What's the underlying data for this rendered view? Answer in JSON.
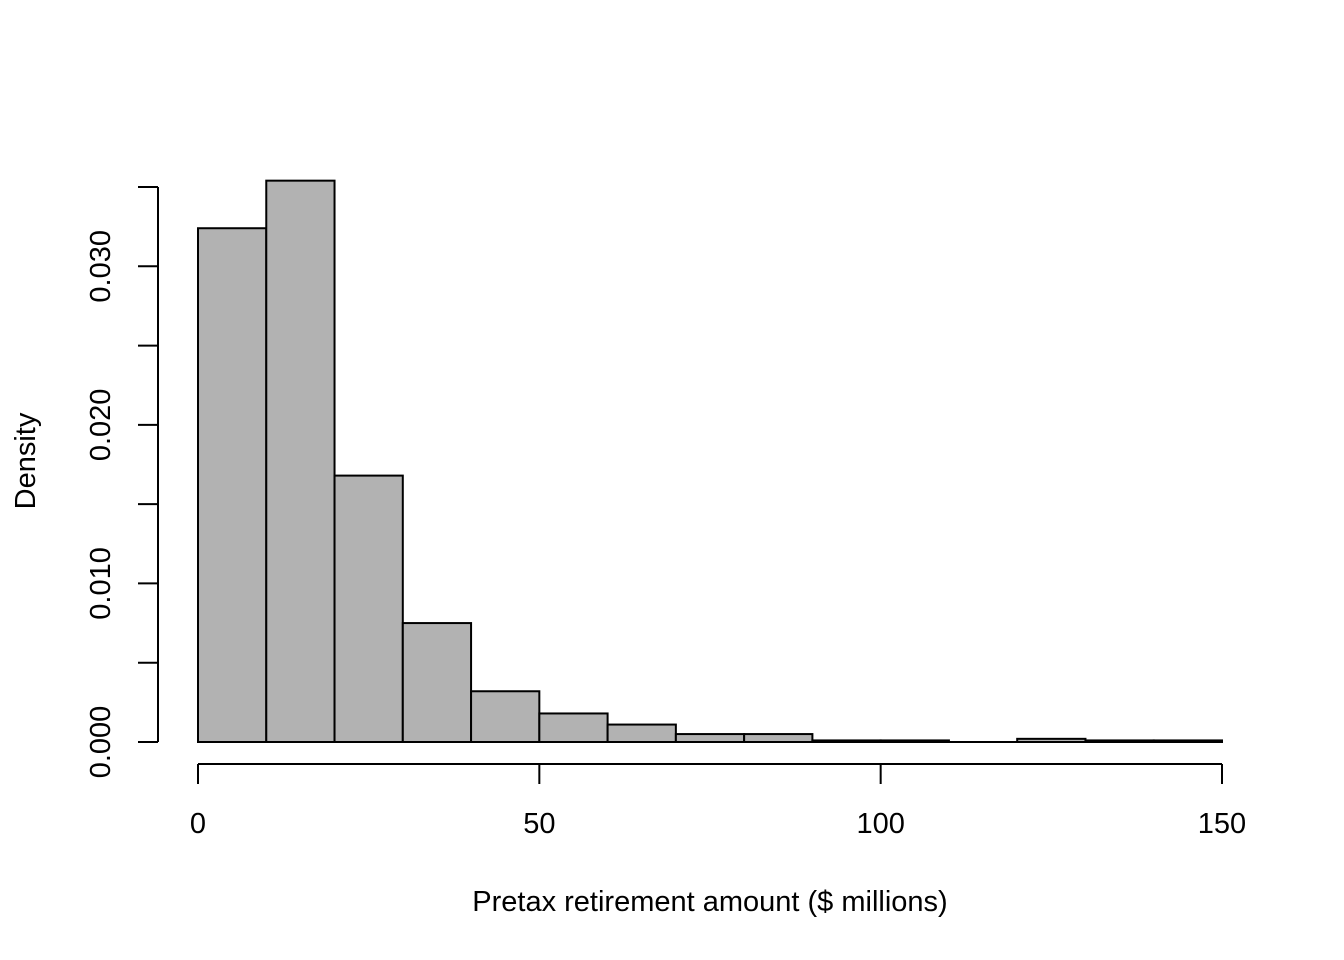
{
  "chart_data": {
    "type": "histogram",
    "title": "",
    "xlabel": "Pretax retirement amount ($ millions)",
    "ylabel": "Density",
    "bin_edges": [
      0,
      10,
      20,
      30,
      40,
      50,
      60,
      70,
      80,
      90,
      100,
      110,
      120,
      130,
      140,
      150
    ],
    "values": [
      0.0324,
      0.0354,
      0.0168,
      0.0075,
      0.0032,
      0.0018,
      0.0011,
      0.0005,
      0.0005,
      0.0001,
      0.0001,
      0.0,
      0.0002,
      0.0001,
      0.0001
    ],
    "xlim": [
      0,
      150
    ],
    "ylim": [
      0,
      0.035
    ],
    "x_ticks": [
      0,
      50,
      100,
      150
    ],
    "x_tick_labels": [
      "0",
      "50",
      "100",
      "150"
    ],
    "y_ticks": [
      0,
      0.005,
      0.01,
      0.015,
      0.02,
      0.025,
      0.03,
      0.035
    ],
    "y_tick_labels": [
      "0.000",
      "0.010",
      "0.020",
      "0.030"
    ],
    "y_labeled_ticks": [
      0,
      0.01,
      0.02,
      0.03
    ],
    "grid": false,
    "bar_color": "#b2b2b2",
    "edge_color": "#000000"
  }
}
